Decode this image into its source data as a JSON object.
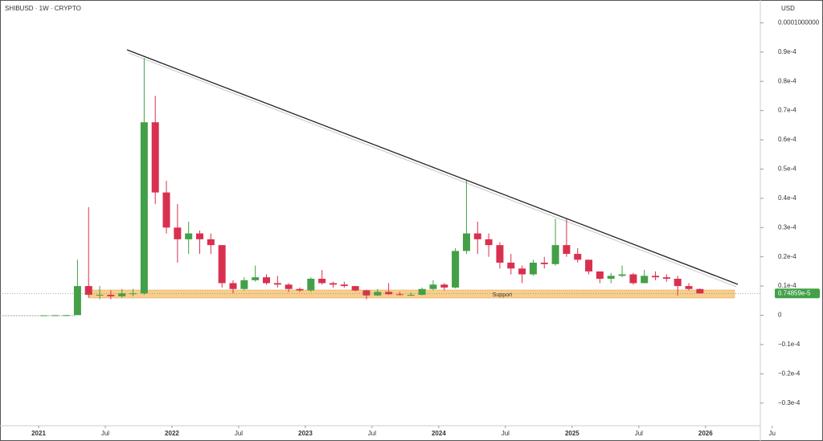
{
  "chart_data": {
    "type": "candlestick",
    "title": "SHIBUSD · 1W · CRYPTO",
    "currency": "USD",
    "up_color": "#43a047",
    "down_color": "#d9304f",
    "x": [
      "2021-01",
      "2021-02",
      "2021-03",
      "2021-04",
      "2021-05",
      "2021-06",
      "2021-07",
      "2021-08",
      "2021-09",
      "2021-10",
      "2021-11",
      "2021-12",
      "2022-01",
      "2022-02",
      "2022-03",
      "2022-04",
      "2022-05",
      "2022-06",
      "2022-07",
      "2022-08",
      "2022-09",
      "2022-10",
      "2022-11",
      "2022-12",
      "2023-01",
      "2023-02",
      "2023-03",
      "2023-04",
      "2023-05",
      "2023-06",
      "2023-07",
      "2023-08",
      "2023-09",
      "2023-10",
      "2023-11",
      "2023-12",
      "2024-01",
      "2024-02",
      "2024-03",
      "2024-04",
      "2024-05",
      "2024-06",
      "2024-07",
      "2024-08",
      "2024-09",
      "2024-10",
      "2024-11",
      "2024-12",
      "2025-01",
      "2025-02",
      "2025-03",
      "2025-04",
      "2025-05",
      "2025-06",
      "2025-07",
      "2025-08",
      "2025-09",
      "2025-10",
      "2025-11",
      "2025-12"
    ],
    "series": {
      "open": [
        1e-08,
        1e-08,
        4e-08,
        7e-08,
        1e-05,
        7e-06,
        7e-06,
        6.5e-06,
        7.5e-06,
        7.5e-06,
        6.6e-05,
        4.2e-05,
        3e-05,
        2.6e-05,
        2.8e-05,
        2.6e-05,
        2.4e-05,
        1.1e-05,
        9e-06,
        1.2e-05,
        1.3e-05,
        1.1e-05,
        1.05e-05,
        9e-06,
        8.5e-06,
        1.25e-05,
        1.1e-05,
        1.05e-05,
        1e-05,
        8.5e-06,
        6.8e-06,
        8e-06,
        7.2e-06,
        7e-06,
        7e-06,
        9e-06,
        1.05e-05,
        9.5e-06,
        2.2e-05,
        2.8e-05,
        2.6e-05,
        2.4e-05,
        1.8e-05,
        1.6e-05,
        1.4e-05,
        1.8e-05,
        1.75e-05,
        2.4e-05,
        2.1e-05,
        1.9e-05,
        1.5e-05,
        1.25e-05,
        1.35e-05,
        1.4e-05,
        1.1e-05,
        1.35e-05,
        1.3e-05,
        1.25e-05,
        1e-05,
        9e-06
      ],
      "high": [
        1e-08,
        5e-08,
        1e-07,
        1.9e-05,
        3.7e-05,
        1e-05,
        8.5e-06,
        9e-06,
        9e-06,
        8.8e-05,
        7.5e-05,
        4.6e-05,
        3.8e-05,
        3.2e-05,
        2.9e-05,
        2.8e-05,
        2.4e-05,
        1.2e-05,
        1.3e-05,
        1.7e-05,
        1.4e-05,
        1.35e-05,
        1.1e-05,
        9.5e-06,
        1.3e-05,
        1.55e-05,
        1.15e-05,
        1.15e-05,
        1e-05,
        8.8e-06,
        9e-06,
        1.1e-05,
        8e-06,
        7.8e-06,
        9.5e-06,
        1.2e-05,
        1.1e-05,
        2.3e-05,
        4.6e-05,
        3.2e-05,
        2.8e-05,
        2.5e-05,
        2.1e-05,
        1.7e-05,
        1.9e-05,
        2e-05,
        3.3e-05,
        3.3e-05,
        2.3e-05,
        1.9e-05,
        1.5e-05,
        1.45e-05,
        1.7e-05,
        1.45e-05,
        1.55e-05,
        1.5e-05,
        1.4e-05,
        1.35e-05,
        1.1e-05,
        9.2e-06
      ],
      "low": [
        1e-08,
        1e-08,
        2e-08,
        7e-08,
        6e-06,
        5.5e-06,
        5.5e-06,
        6e-06,
        6.5e-06,
        7e-06,
        3.8e-05,
        2.8e-05,
        1.8e-05,
        2.1e-05,
        2.1e-05,
        2.1e-05,
        9.5e-06,
        7.5e-06,
        8.5e-06,
        1.15e-05,
        1.05e-05,
        9.5e-06,
        8e-06,
        8e-06,
        8e-06,
        1.05e-05,
        9.5e-06,
        9.5e-06,
        8.2e-06,
        5.5e-06,
        6.6e-06,
        7e-06,
        6.8e-06,
        6.6e-06,
        6.8e-06,
        8.5e-06,
        8.5e-06,
        9.2e-06,
        2.1e-05,
        2.1e-05,
        2e-05,
        1.6e-05,
        1.4e-05,
        1.1e-05,
        1.35e-05,
        1.6e-05,
        1.7e-05,
        2e-05,
        1.8e-05,
        1.4e-05,
        1.1e-05,
        1.1e-05,
        1.3e-05,
        1.05e-05,
        1.1e-05,
        1.2e-05,
        1.15e-05,
        6.8e-06,
        8.5e-06,
        7.5e-06
      ],
      "close": [
        1e-08,
        4e-08,
        7e-08,
        1e-05,
        7e-06,
        7e-06,
        6.5e-06,
        7.5e-06,
        7.5e-06,
        6.6e-05,
        4.2e-05,
        3e-05,
        2.6e-05,
        2.8e-05,
        2.6e-05,
        2.4e-05,
        1.1e-05,
        9e-06,
        1.2e-05,
        1.3e-05,
        1.1e-05,
        1.05e-05,
        9e-06,
        8.5e-06,
        1.25e-05,
        1.1e-05,
        1.05e-05,
        1e-05,
        8.5e-06,
        6.8e-06,
        8e-06,
        7.2e-06,
        7e-06,
        7e-06,
        9e-06,
        1.05e-05,
        9.5e-06,
        2.2e-05,
        2.8e-05,
        2.6e-05,
        2.4e-05,
        1.8e-05,
        1.6e-05,
        1.4e-05,
        1.8e-05,
        1.75e-05,
        2.4e-05,
        2.1e-05,
        1.9e-05,
        1.5e-05,
        1.25e-05,
        1.35e-05,
        1.4e-05,
        1.1e-05,
        1.35e-05,
        1.3e-05,
        1.25e-05,
        1e-05,
        9e-06,
        7.4859e-06
      ]
    },
    "last_price": {
      "value": 7.4859e-06,
      "label": "0.74859e-5"
    },
    "annotations": [
      "Support"
    ],
    "ylim": [
      -4.05e-05,
      0.0001078
    ],
    "yticks": [
      {
        "value": 0.0001,
        "label": "0.0001000000"
      },
      {
        "value": 9e-05,
        "label": "0.9e-4"
      },
      {
        "value": 8e-05,
        "label": "0.8e-4"
      },
      {
        "value": 7e-05,
        "label": "0.7e-4"
      },
      {
        "value": 6e-05,
        "label": "0.6e-4"
      },
      {
        "value": 5e-05,
        "label": "0.5e-4"
      },
      {
        "value": 4e-05,
        "label": "0.4e-4"
      },
      {
        "value": 3e-05,
        "label": "0.3e-4"
      },
      {
        "value": 2e-05,
        "label": "0.2e-4"
      },
      {
        "value": 1e-05,
        "label": "0.1e-4"
      },
      0,
      {
        "value": -1e-05,
        "label": "−0.1e-4"
      },
      {
        "value": -2e-05,
        "label": "−0.2e-4"
      },
      {
        "value": -3e-05,
        "label": "−0.3e-4"
      }
    ],
    "xticks": [
      {
        "value": "2021-01",
        "label": "2021"
      },
      {
        "value": "2021-07",
        "label": "Jul"
      },
      {
        "value": "2022-01",
        "label": "2022"
      },
      {
        "value": "2022-07",
        "label": "Jul"
      },
      {
        "value": "2023-01",
        "label": "2023"
      },
      {
        "value": "2023-07",
        "label": "Jul"
      },
      {
        "value": "2024-01",
        "label": "2024"
      },
      {
        "value": "2024-07",
        "label": "Jul"
      },
      {
        "value": "2025-01",
        "label": "2025"
      },
      {
        "value": "2025-07",
        "label": "Jul"
      },
      {
        "value": "2026-01",
        "label": "2026"
      },
      {
        "value": "2026-07",
        "label": "Ju"
      }
    ]
  }
}
